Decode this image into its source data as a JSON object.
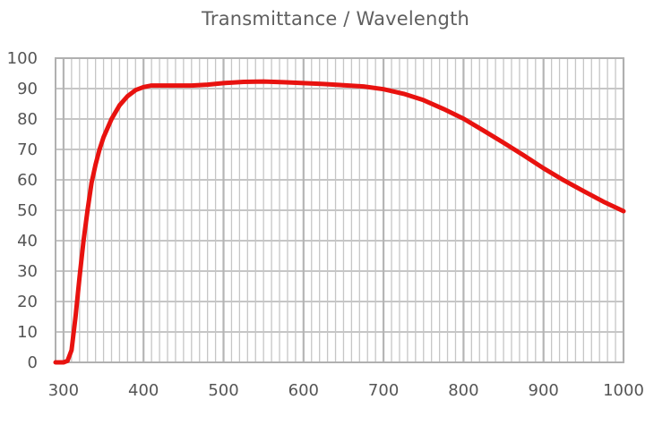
{
  "chart_data": {
    "type": "line",
    "title": "Transmittance / Wavelength",
    "xlabel": "",
    "ylabel": "",
    "xlim": [
      290,
      1000
    ],
    "ylim": [
      0,
      100
    ],
    "x_ticks": [
      300,
      400,
      500,
      600,
      700,
      800,
      900,
      1000
    ],
    "x_tick_labels": [
      "300",
      "400",
      "500",
      "600",
      "700",
      "800",
      "900",
      "1000"
    ],
    "y_ticks": [
      0,
      10,
      20,
      30,
      40,
      50,
      60,
      70,
      80,
      90,
      100
    ],
    "y_tick_labels": [
      "0",
      "10",
      "20",
      "30",
      "40",
      "50",
      "60",
      "70",
      "80",
      "90",
      "100"
    ],
    "grid": true,
    "series_color": "#e8120f",
    "grid_color": "#c6c6c6",
    "series": [
      {
        "x": [
          290,
          300,
          305,
          310,
          315,
          320,
          325,
          330,
          335,
          340,
          345,
          350,
          360,
          370,
          380,
          390,
          400,
          410,
          420,
          440,
          460,
          480,
          500,
          525,
          550,
          575,
          600,
          625,
          650,
          675,
          700,
          725,
          750,
          775,
          800,
          825,
          850,
          875,
          900,
          925,
          950,
          975,
          1000
        ],
        "y": [
          0,
          0,
          0.5,
          4,
          15,
          28,
          40,
          50,
          59,
          65,
          70,
          74,
          80,
          84.5,
          87.5,
          89.5,
          90.5,
          91,
          91,
          91,
          91,
          91.3,
          91.8,
          92.2,
          92.3,
          92.1,
          91.8,
          91.5,
          91.1,
          90.7,
          89.8,
          88.3,
          86.2,
          83.3,
          80.1,
          76.2,
          72.2,
          68.1,
          63.8,
          59.9,
          56.3,
          52.8,
          49.7
        ]
      }
    ]
  }
}
